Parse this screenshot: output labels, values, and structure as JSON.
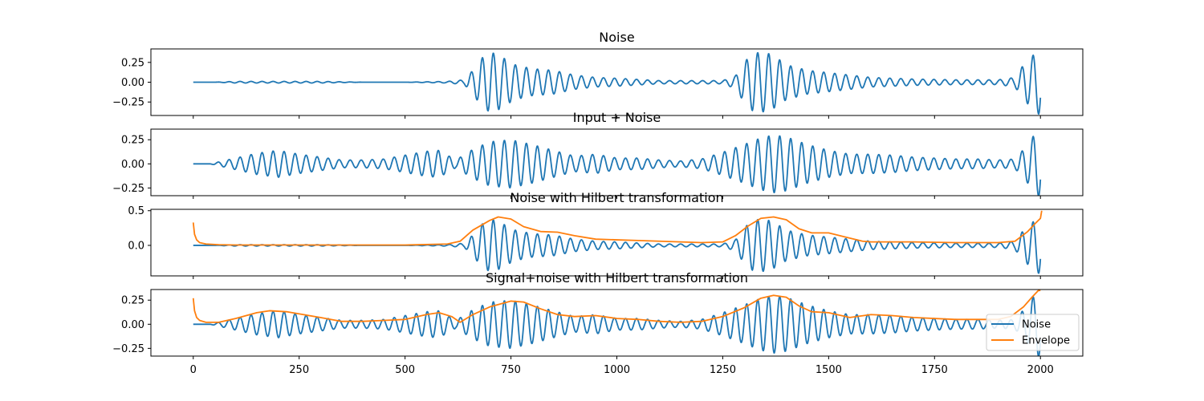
{
  "chart_data": [
    {
      "type": "line",
      "title": "Noise",
      "xlim": [
        -100,
        2100
      ],
      "ylim": [
        -0.42,
        0.42
      ],
      "yticks": [
        -0.25,
        0.0,
        0.25
      ],
      "ytick_labels": [
        "−0.25",
        "0.00",
        "0.25"
      ],
      "x_tick_labels_visible": false,
      "series": [
        {
          "key": "noise",
          "color": "#1f77b4",
          "x": [
            0,
            50,
            100,
            200,
            300,
            400,
            500,
            600,
            640,
            660,
            680,
            700,
            720,
            740,
            760,
            800,
            850,
            900,
            950,
            1000,
            1100,
            1200,
            1250,
            1280,
            1300,
            1320,
            1340,
            1360,
            1380,
            1400,
            1450,
            1500,
            1600,
            1700,
            1800,
            1900,
            1940,
            1960,
            1975,
            1990,
            2000
          ],
          "y": [
            0.0,
            0.0,
            0.01,
            0.01,
            0.01,
            0.0,
            0.0,
            0.01,
            0.03,
            0.15,
            0.3,
            0.38,
            0.35,
            0.28,
            0.22,
            0.17,
            0.15,
            0.09,
            0.06,
            0.05,
            0.02,
            0.02,
            0.02,
            0.08,
            0.25,
            0.36,
            0.38,
            0.36,
            0.3,
            0.22,
            0.15,
            0.12,
            0.06,
            0.04,
            0.03,
            0.03,
            0.06,
            0.22,
            0.3,
            0.38,
            0.42
          ],
          "period": 26
        }
      ]
    },
    {
      "type": "line",
      "title": "Input + Noise",
      "xlim": [
        -100,
        2100
      ],
      "ylim": [
        -0.33,
        0.36
      ],
      "yticks": [
        -0.25,
        0.0,
        0.25
      ],
      "ytick_labels": [
        "−0.25",
        "0.00",
        "0.25"
      ],
      "x_tick_labels_visible": false,
      "series": [
        {
          "key": "input_noise",
          "color": "#1f77b4",
          "x": [
            0,
            40,
            60,
            100,
            150,
            200,
            250,
            300,
            350,
            400,
            450,
            500,
            550,
            580,
            620,
            660,
            700,
            750,
            800,
            850,
            900,
            950,
            1000,
            1050,
            1100,
            1150,
            1200,
            1250,
            1300,
            1340,
            1370,
            1400,
            1450,
            1500,
            1550,
            1600,
            1650,
            1700,
            1800,
            1850,
            1900,
            1940,
            1970,
            1985,
            2000
          ],
          "y": [
            0.0,
            0.0,
            0.02,
            0.06,
            0.11,
            0.14,
            0.1,
            0.07,
            0.04,
            0.04,
            0.05,
            0.09,
            0.13,
            0.14,
            0.04,
            0.15,
            0.23,
            0.25,
            0.2,
            0.14,
            0.08,
            0.1,
            0.06,
            0.06,
            0.04,
            0.03,
            0.05,
            0.12,
            0.2,
            0.27,
            0.3,
            0.28,
            0.2,
            0.14,
            0.1,
            0.1,
            0.09,
            0.07,
            0.05,
            0.05,
            0.04,
            0.05,
            0.2,
            0.3,
            0.35
          ],
          "period": 26
        }
      ]
    },
    {
      "type": "line",
      "title": "Noise with Hilbert transformation",
      "xlim": [
        -100,
        2100
      ],
      "ylim": [
        -0.44,
        0.52
      ],
      "yticks": [
        0.0,
        0.5
      ],
      "ytick_labels": [
        "0.0",
        "0.5"
      ],
      "x_tick_labels_visible": false,
      "series": [
        {
          "key": "noise",
          "color": "#1f77b4",
          "x": [
            0,
            50,
            100,
            200,
            300,
            400,
            500,
            600,
            640,
            660,
            680,
            700,
            720,
            740,
            760,
            800,
            850,
            900,
            950,
            1000,
            1100,
            1200,
            1250,
            1280,
            1300,
            1320,
            1340,
            1360,
            1380,
            1400,
            1450,
            1500,
            1600,
            1700,
            1800,
            1900,
            1940,
            1960,
            1975,
            1990,
            2000
          ],
          "y": [
            0.0,
            0.0,
            0.01,
            0.01,
            0.01,
            0.0,
            0.0,
            0.01,
            0.03,
            0.15,
            0.3,
            0.38,
            0.35,
            0.28,
            0.22,
            0.17,
            0.15,
            0.09,
            0.06,
            0.05,
            0.02,
            0.02,
            0.02,
            0.08,
            0.25,
            0.36,
            0.38,
            0.36,
            0.3,
            0.22,
            0.15,
            0.12,
            0.06,
            0.04,
            0.03,
            0.03,
            0.06,
            0.22,
            0.3,
            0.38,
            0.42
          ],
          "period": 26
        },
        {
          "key": "envelope",
          "color": "#ff7f0e",
          "x": [
            0,
            3,
            8,
            15,
            30,
            60,
            100,
            200,
            300,
            400,
            500,
            600,
            630,
            660,
            700,
            720,
            750,
            780,
            820,
            860,
            900,
            950,
            1000,
            1050,
            1100,
            1150,
            1200,
            1250,
            1280,
            1310,
            1340,
            1370,
            1400,
            1430,
            1460,
            1500,
            1540,
            1580,
            1600,
            1700,
            1800,
            1900,
            1940,
            1970,
            1990,
            2000,
            2003
          ],
          "y": [
            0.33,
            0.16,
            0.08,
            0.04,
            0.02,
            0.01,
            0.005,
            0.005,
            0.005,
            0.005,
            0.005,
            0.02,
            0.06,
            0.22,
            0.36,
            0.41,
            0.38,
            0.27,
            0.2,
            0.19,
            0.14,
            0.09,
            0.08,
            0.07,
            0.06,
            0.05,
            0.04,
            0.05,
            0.14,
            0.28,
            0.39,
            0.41,
            0.37,
            0.24,
            0.18,
            0.18,
            0.12,
            0.06,
            0.05,
            0.05,
            0.04,
            0.04,
            0.06,
            0.2,
            0.33,
            0.39,
            0.5
          ]
        }
      ]
    },
    {
      "type": "line",
      "title": "Signal+noise with Hilbert transformation",
      "xlim": [
        -100,
        2100
      ],
      "ylim": [
        -0.33,
        0.36
      ],
      "yticks": [
        -0.25,
        0.0,
        0.25
      ],
      "ytick_labels": [
        "−0.25",
        "0.00",
        "0.25"
      ],
      "xticks": [
        0,
        250,
        500,
        750,
        1000,
        1250,
        1500,
        1750,
        2000
      ],
      "xtick_labels": [
        "0",
        "250",
        "500",
        "750",
        "1000",
        "1250",
        "1500",
        "1750",
        "2000"
      ],
      "x_tick_labels_visible": true,
      "legend": {
        "placement": "bottom-right",
        "entries": [
          {
            "label": "Noise",
            "color": "#1f77b4"
          },
          {
            "label": "Envelope",
            "color": "#ff7f0e"
          }
        ]
      },
      "series": [
        {
          "key": "input_noise",
          "color": "#1f77b4",
          "x": [
            0,
            40,
            60,
            100,
            150,
            200,
            250,
            300,
            350,
            400,
            450,
            500,
            550,
            580,
            620,
            660,
            700,
            750,
            800,
            850,
            900,
            950,
            1000,
            1050,
            1100,
            1150,
            1200,
            1250,
            1300,
            1340,
            1370,
            1400,
            1450,
            1500,
            1550,
            1600,
            1650,
            1700,
            1800,
            1850,
            1900,
            1940,
            1970,
            1985,
            2000
          ],
          "y": [
            0.0,
            0.0,
            0.02,
            0.06,
            0.11,
            0.14,
            0.1,
            0.07,
            0.04,
            0.04,
            0.05,
            0.09,
            0.13,
            0.14,
            0.04,
            0.15,
            0.23,
            0.25,
            0.2,
            0.14,
            0.08,
            0.1,
            0.06,
            0.06,
            0.04,
            0.03,
            0.05,
            0.12,
            0.2,
            0.27,
            0.3,
            0.28,
            0.2,
            0.14,
            0.1,
            0.1,
            0.09,
            0.07,
            0.05,
            0.05,
            0.04,
            0.05,
            0.2,
            0.3,
            0.35
          ],
          "period": 26
        },
        {
          "key": "envelope",
          "color": "#ff7f0e",
          "x": [
            0,
            3,
            8,
            15,
            30,
            60,
            100,
            150,
            180,
            220,
            260,
            300,
            350,
            400,
            450,
            500,
            550,
            580,
            610,
            630,
            660,
            700,
            750,
            780,
            820,
            860,
            900,
            950,
            1000,
            1050,
            1100,
            1150,
            1200,
            1250,
            1300,
            1340,
            1370,
            1400,
            1430,
            1460,
            1500,
            1550,
            1600,
            1650,
            1700,
            1800,
            1850,
            1900,
            1930,
            1960,
            1980,
            1995,
            2000
          ],
          "y": [
            0.27,
            0.14,
            0.07,
            0.04,
            0.02,
            0.02,
            0.06,
            0.12,
            0.14,
            0.13,
            0.1,
            0.07,
            0.03,
            0.03,
            0.04,
            0.05,
            0.1,
            0.12,
            0.08,
            0.02,
            0.1,
            0.18,
            0.24,
            0.23,
            0.16,
            0.1,
            0.08,
            0.09,
            0.06,
            0.05,
            0.03,
            0.02,
            0.03,
            0.08,
            0.17,
            0.27,
            0.3,
            0.28,
            0.19,
            0.13,
            0.12,
            0.07,
            0.1,
            0.09,
            0.07,
            0.05,
            0.05,
            0.05,
            0.08,
            0.18,
            0.28,
            0.35,
            0.35
          ]
        }
      ]
    }
  ]
}
